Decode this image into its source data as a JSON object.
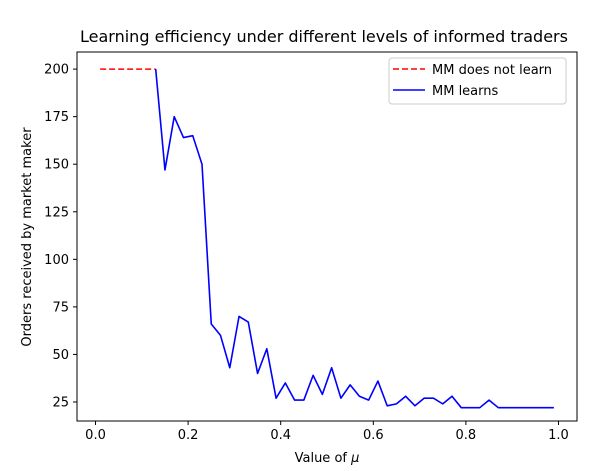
{
  "chart_data": {
    "type": "line",
    "title": "Learning efficiency under different levels of informed traders",
    "xlabel_text": "Value of ",
    "xlabel_symbol": "μ",
    "ylabel": "Orders received by market maker",
    "xlim": [
      -0.04,
      1.04
    ],
    "ylim": [
      15,
      209
    ],
    "xticks": [
      0.0,
      0.2,
      0.4,
      0.6,
      0.8,
      1.0
    ],
    "xtick_labels": [
      "0.0",
      "0.2",
      "0.4",
      "0.6",
      "0.8",
      "1.0"
    ],
    "yticks": [
      25,
      50,
      75,
      100,
      125,
      150,
      175,
      200
    ],
    "ytick_labels": [
      "25",
      "50",
      "75",
      "100",
      "125",
      "150",
      "175",
      "200"
    ],
    "legend_position": "top-right",
    "series": [
      {
        "name": "MM does not learn",
        "color": "#ff0000",
        "style": "dashed",
        "x": [
          0.01,
          0.03,
          0.05,
          0.07,
          0.09,
          0.11,
          0.13
        ],
        "y": [
          200,
          200,
          200,
          200,
          200,
          200,
          200
        ]
      },
      {
        "name": "MM learns",
        "color": "#0000ff",
        "style": "solid",
        "x": [
          0.13,
          0.15,
          0.17,
          0.19,
          0.21,
          0.23,
          0.25,
          0.27,
          0.29,
          0.31,
          0.33,
          0.35,
          0.37,
          0.39,
          0.41,
          0.43,
          0.45,
          0.47,
          0.49,
          0.51,
          0.53,
          0.55,
          0.57,
          0.59,
          0.61,
          0.63,
          0.65,
          0.67,
          0.69,
          0.71,
          0.73,
          0.75,
          0.77,
          0.79,
          0.81,
          0.83,
          0.85,
          0.87,
          0.89,
          0.91,
          0.93,
          0.95,
          0.97,
          0.99
        ],
        "y": [
          200,
          147,
          175,
          164,
          165,
          150,
          66,
          60,
          43,
          70,
          67,
          40,
          53,
          27,
          35,
          26,
          26,
          39,
          29,
          43,
          27,
          34,
          28,
          26,
          36,
          23,
          24,
          28,
          23,
          27,
          27,
          24,
          28,
          22,
          22,
          22,
          26,
          22,
          22,
          22,
          22,
          22,
          22,
          22
        ]
      }
    ]
  }
}
